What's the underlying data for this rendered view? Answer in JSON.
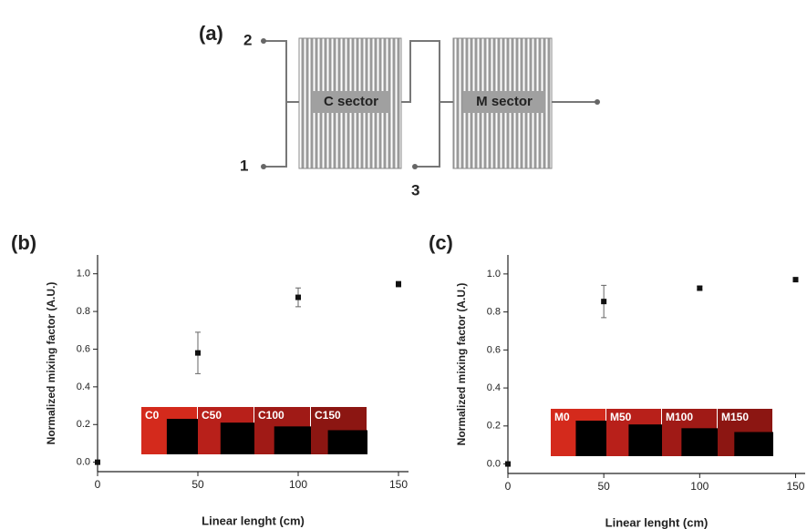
{
  "diagram": {
    "panel": "(a)",
    "port_2": "2",
    "port_1": "1",
    "port_3": "3",
    "c_sector": "C sector",
    "m_sector": "M sector"
  },
  "chart_data": [
    {
      "type": "scatter",
      "title": "(b)",
      "x_label": "Linear lenght (cm)",
      "y_label": "Normalized mixing factor (A.U.)",
      "x": [
        0,
        50,
        100,
        150
      ],
      "values": [
        0.0,
        0.58,
        0.875,
        0.945
      ],
      "errors": [
        0.0,
        0.11,
        0.05,
        0.015
      ],
      "color": "#111111",
      "xlim": [
        0,
        155
      ],
      "ylim": [
        -0.05,
        1.1
      ],
      "xticks": [
        0,
        50,
        100,
        150
      ],
      "yticks": [
        {
          "value": 0,
          "label": "0.0"
        },
        {
          "value": 0.2,
          "label": "0.2"
        },
        {
          "value": 0.4,
          "label": "0.4"
        },
        {
          "value": 0.6,
          "label": "0.6"
        },
        {
          "value": 0.8,
          "label": "0.8"
        },
        {
          "value": 1.0,
          "label": "1.0"
        }
      ],
      "insets": [
        "C0",
        "C50",
        "C100",
        "C150"
      ]
    },
    {
      "type": "scatter",
      "title": "(c)",
      "x_label": "Linear lenght (cm)",
      "y_label": "Normalized mixing factor (A.U.)",
      "x": [
        0,
        50,
        100,
        150
      ],
      "values": [
        0.0,
        0.855,
        0.925,
        0.97
      ],
      "errors": [
        0.0,
        0.085,
        0.01,
        0.01
      ],
      "color": "#111111",
      "xlim": [
        0,
        155
      ],
      "ylim": [
        -0.05,
        1.1
      ],
      "xticks": [
        0,
        50,
        100,
        150
      ],
      "yticks": [
        {
          "value": 0,
          "label": "0.0"
        },
        {
          "value": 0.2,
          "label": "0.2"
        },
        {
          "value": 0.4,
          "label": "0.4"
        },
        {
          "value": 0.6,
          "label": "0.6"
        },
        {
          "value": 0.8,
          "label": "0.8"
        },
        {
          "value": 1.0,
          "label": "1.0"
        }
      ],
      "insets": [
        "M0",
        "M50",
        "M100",
        "M150"
      ]
    }
  ]
}
